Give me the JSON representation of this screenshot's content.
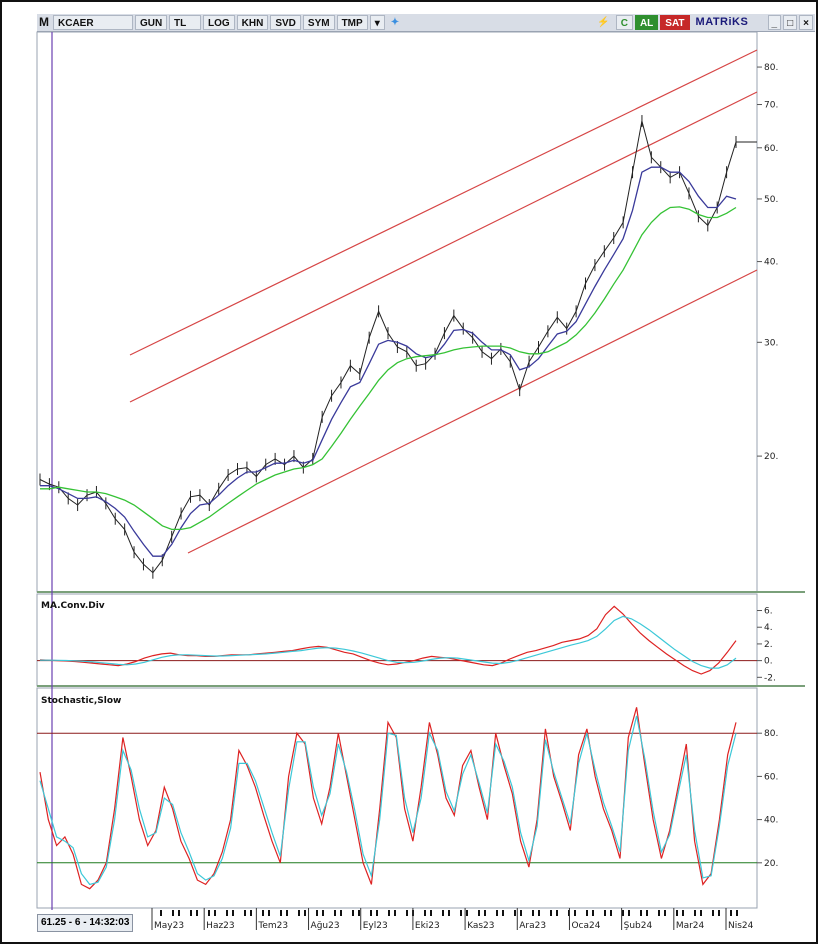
{
  "toolbar": {
    "app_letter": "M",
    "symbol": "KCAER",
    "period": "GUN",
    "currency": "TL",
    "btn_log": "LOG",
    "btn_khn": "KHN",
    "btn_svd": "SVD",
    "btn_sym": "SYM",
    "btn_tmp": "TMP",
    "btn_c": "C",
    "btn_al": "AL",
    "btn_sat": "SAT",
    "brand": "MATRiKS",
    "colors": {
      "al": "#2f8f2f",
      "sat": "#c62828"
    }
  },
  "status": {
    "readout": "61.25 - 6 - 14:32:03"
  },
  "chart_data": [
    {
      "type": "line",
      "panel": "price",
      "scale": "log",
      "ylim": [
        12.5,
        90
      ],
      "yticks": [
        "80.",
        "70.",
        "60.",
        "50.",
        "40.",
        "30.",
        "20."
      ],
      "ytick_values": [
        80,
        70,
        60,
        50,
        40,
        30,
        20
      ],
      "x_tick_labels": [
        "May23",
        "Haz23",
        "Tem23",
        "Ağu23",
        "Eyl23",
        "Eki23",
        "Kas23",
        "Ara23",
        "Oca24",
        "Şub24",
        "Mar24",
        "Nis24"
      ],
      "series": [
        {
          "values": [
            18.4,
            18.1,
            17.9,
            17.2,
            16.8,
            17.4,
            17.6,
            16.9,
            16.0,
            15.4,
            14.2,
            13.6,
            13.2,
            13.8,
            15.0,
            16.3,
            17.3,
            17.4,
            16.8,
            17.8,
            18.7,
            19.1,
            19.2,
            18.6,
            19.4,
            19.8,
            19.4,
            20.0,
            19.2,
            19.8,
            23.0,
            24.8,
            26.0,
            27.6,
            26.8,
            30.5,
            33.5,
            31.0,
            29.5,
            29.0,
            27.6,
            27.8,
            28.8,
            31.0,
            33.0,
            31.5,
            30.5,
            29.0,
            28.3,
            29.3,
            28.0,
            25.3,
            28.0,
            29.5,
            31.2,
            32.8,
            31.5,
            33.5,
            37.0,
            39.5,
            41.5,
            43.5,
            46.0,
            55.0,
            66.0,
            58.0,
            56.0,
            54.0,
            55.0,
            51.0,
            47.0,
            45.5,
            48.5,
            55.0,
            61.25
          ]
        },
        {
          "values": [
            18.0,
            18.0,
            17.8,
            17.5,
            17.2,
            17.2,
            17.3,
            17.0,
            16.6,
            16.1,
            15.3,
            14.6,
            14.0,
            14.0,
            14.6,
            15.5,
            16.3,
            16.8,
            16.9,
            17.4,
            18.0,
            18.5,
            18.9,
            18.9,
            19.2,
            19.5,
            19.5,
            19.7,
            19.5,
            19.7,
            21.2,
            22.8,
            24.2,
            25.6,
            26.0,
            27.8,
            29.8,
            30.2,
            30.0,
            29.6,
            28.8,
            28.4,
            28.6,
            29.8,
            31.3,
            31.4,
            31.0,
            30.0,
            29.2,
            29.2,
            28.7,
            27.2,
            27.5,
            28.3,
            29.6,
            30.9,
            31.2,
            32.3,
            34.4,
            36.6,
            38.8,
            41.0,
            43.4,
            48.0,
            55.0,
            56.0,
            56.0,
            55.0,
            55.0,
            53.2,
            50.5,
            48.5,
            48.5,
            50.5,
            50.0
          ]
        },
        {
          "values": [
            17.8,
            17.8,
            17.9,
            17.8,
            17.7,
            17.6,
            17.6,
            17.5,
            17.3,
            17.1,
            16.8,
            16.4,
            16.0,
            15.6,
            15.4,
            15.4,
            15.5,
            15.8,
            16.1,
            16.5,
            16.9,
            17.3,
            17.7,
            18.1,
            18.4,
            18.7,
            18.9,
            19.1,
            19.2,
            19.4,
            19.8,
            20.7,
            21.7,
            22.8,
            23.9,
            25.0,
            26.2,
            27.2,
            27.9,
            28.3,
            28.5,
            28.6,
            28.7,
            28.9,
            29.2,
            29.4,
            29.5,
            29.6,
            29.6,
            29.6,
            29.4,
            29.0,
            28.8,
            28.8,
            29.0,
            29.5,
            30.0,
            30.8,
            31.9,
            33.3,
            35.0,
            36.9,
            38.8,
            41.3,
            44.0,
            46.0,
            47.5,
            48.5,
            48.6,
            48.2,
            47.3,
            46.8,
            46.8,
            47.5,
            48.5
          ]
        }
      ],
      "trend_channel": {
        "from": [
          "13.6",
          "May23"
        ],
        "note": ""
      }
    },
    {
      "type": "line",
      "panel": "macd",
      "title": "MA.Conv.Div",
      "ylim": [
        -2.8,
        7.5
      ],
      "yticks": [
        "6.",
        "4.",
        "2.",
        "0.",
        "-2."
      ],
      "ytick_values": [
        6,
        4,
        2,
        0,
        -2
      ],
      "series": [
        {
          "values": [
            0.1,
            0.05,
            0.0,
            -0.05,
            -0.1,
            -0.2,
            -0.3,
            -0.4,
            -0.5,
            -0.6,
            -0.4,
            -0.1,
            0.3,
            0.6,
            0.8,
            0.9,
            0.7,
            0.6,
            0.6,
            0.5,
            0.5,
            0.6,
            0.7,
            0.7,
            0.7,
            0.8,
            0.9,
            1.0,
            1.1,
            1.2,
            1.4,
            1.6,
            1.7,
            1.6,
            1.3,
            1.0,
            0.8,
            0.4,
            0.0,
            -0.3,
            -0.5,
            -0.4,
            -0.2,
            0.0,
            0.3,
            0.5,
            0.4,
            0.3,
            0.1,
            -0.1,
            -0.3,
            -0.5,
            -0.6,
            -0.3,
            0.2,
            0.6,
            1.0,
            1.2,
            1.5,
            1.8,
            2.2,
            2.4,
            2.6,
            3.0,
            3.8,
            5.5,
            6.5,
            5.6,
            4.4,
            3.3,
            2.4,
            1.6,
            0.8,
            0.1,
            -0.6,
            -1.2,
            -1.6,
            -1.2,
            -0.3,
            1.0,
            2.4
          ]
        },
        {
          "values": [
            0.05,
            0.05,
            0.04,
            0.02,
            -0.02,
            -0.08,
            -0.15,
            -0.25,
            -0.35,
            -0.45,
            -0.5,
            -0.4,
            -0.2,
            0.1,
            0.4,
            0.6,
            0.7,
            0.7,
            0.65,
            0.6,
            0.55,
            0.55,
            0.6,
            0.65,
            0.7,
            0.75,
            0.8,
            0.9,
            1.0,
            1.1,
            1.2,
            1.35,
            1.5,
            1.55,
            1.5,
            1.35,
            1.15,
            0.9,
            0.6,
            0.3,
            0.0,
            -0.2,
            -0.25,
            -0.2,
            -0.05,
            0.15,
            0.3,
            0.35,
            0.3,
            0.15,
            0.0,
            -0.15,
            -0.3,
            -0.35,
            -0.2,
            0.05,
            0.35,
            0.65,
            0.95,
            1.25,
            1.55,
            1.85,
            2.1,
            2.4,
            2.9,
            3.8,
            4.8,
            5.3,
            5.0,
            4.4,
            3.7,
            2.9,
            2.1,
            1.3,
            0.6,
            -0.1,
            -0.6,
            -0.9,
            -0.9,
            -0.5,
            0.3
          ]
        }
      ]
    },
    {
      "type": "line",
      "panel": "stochastic",
      "title": "Stochastic,Slow",
      "ylim": [
        0,
        100
      ],
      "yticks": [
        "80.",
        "60.",
        "40.",
        "20."
      ],
      "ytick_values": [
        80,
        60,
        40,
        20
      ],
      "reference_lines": [
        80,
        20
      ],
      "series": [
        {
          "values": [
            62,
            40,
            28,
            32,
            24,
            10,
            8,
            12,
            20,
            45,
            78,
            60,
            40,
            28,
            35,
            55,
            45,
            30,
            22,
            12,
            10,
            15,
            25,
            40,
            72,
            65,
            55,
            42,
            30,
            20,
            60,
            80,
            75,
            50,
            38,
            55,
            80,
            60,
            40,
            20,
            10,
            45,
            85,
            78,
            45,
            30,
            55,
            85,
            70,
            50,
            42,
            65,
            72,
            55,
            40,
            80,
            65,
            52,
            30,
            18,
            40,
            82,
            60,
            48,
            35,
            70,
            82,
            60,
            45,
            35,
            22,
            78,
            92,
            65,
            40,
            22,
            35,
            55,
            75,
            30,
            10,
            15,
            40,
            70,
            85
          ]
        },
        {
          "values": [
            58,
            45,
            32,
            30,
            27,
            15,
            10,
            11,
            18,
            40,
            72,
            63,
            45,
            32,
            34,
            50,
            47,
            34,
            25,
            15,
            12,
            14,
            22,
            36,
            66,
            66,
            58,
            46,
            34,
            23,
            54,
            76,
            76,
            55,
            42,
            52,
            75,
            62,
            44,
            24,
            14,
            40,
            80,
            79,
            50,
            34,
            50,
            80,
            72,
            53,
            44,
            61,
            70,
            57,
            43,
            75,
            67,
            55,
            34,
            21,
            37,
            77,
            62,
            50,
            38,
            66,
            80,
            63,
            48,
            37,
            25,
            72,
            88,
            68,
            44,
            25,
            33,
            52,
            70,
            35,
            13,
            14,
            37,
            65,
            80
          ]
        }
      ]
    }
  ]
}
